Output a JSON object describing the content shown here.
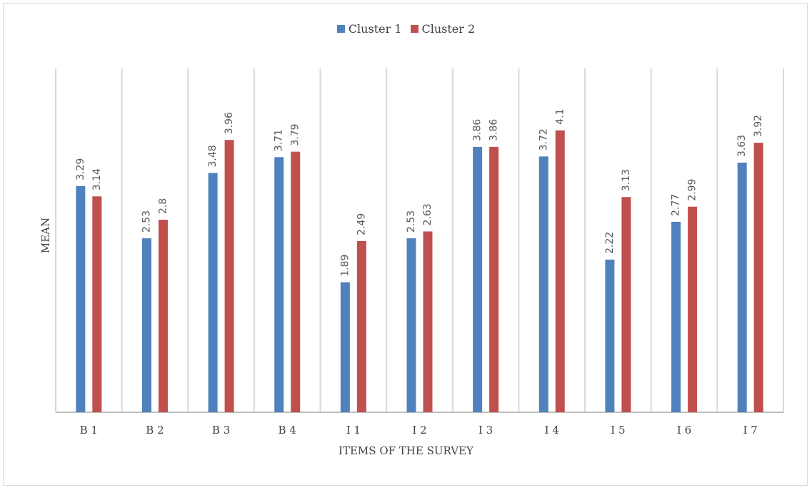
{
  "chart_data": {
    "type": "bar",
    "categories": [
      "B 1",
      "B 2",
      "B 3",
      "B 4",
      "I 1",
      "I 2",
      "I 3",
      "I 4",
      "I 5",
      "I 6",
      "I 7"
    ],
    "series": [
      {
        "name": "Cluster 1",
        "color": "#4f81bd",
        "values": [
          3.29,
          2.53,
          3.48,
          3.71,
          1.89,
          2.53,
          3.86,
          3.72,
          2.22,
          2.77,
          3.63
        ]
      },
      {
        "name": "Cluster 2",
        "color": "#c0504d",
        "values": [
          3.14,
          2.8,
          3.96,
          3.79,
          2.49,
          2.63,
          3.86,
          4.1,
          3.13,
          2.99,
          3.92
        ]
      }
    ],
    "data_labels": [
      [
        "3.29",
        "2.53",
        "3.48",
        "3.71",
        "1.89",
        "2.53",
        "3.86",
        "3.72",
        "2.22",
        "2.77",
        "3.63"
      ],
      [
        "3.14",
        "2.8",
        "3.96",
        "3.79",
        "2.49",
        "2.63",
        "3.86",
        "4.1",
        "3.13",
        "2.99",
        "3.92"
      ]
    ],
    "xlabel": "ITEMS OF THE SURVEY",
    "ylabel": "MEAN",
    "ylim": [
      0,
      5
    ],
    "grid": "vertical",
    "legend_position": "top"
  }
}
